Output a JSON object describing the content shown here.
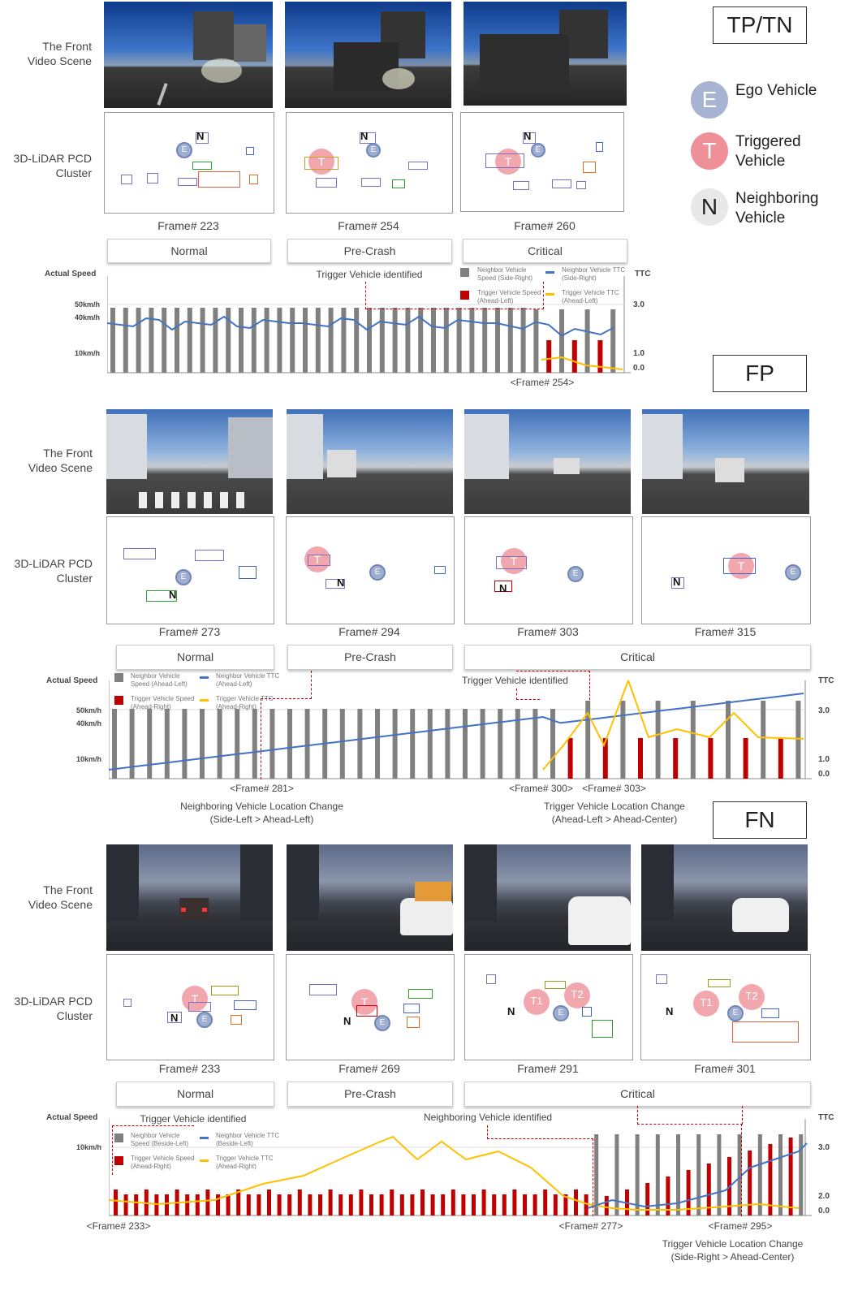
{
  "row_labels": {
    "video": "The Front Video Scene",
    "lidar": "3D-LiDAR PCD Cluster"
  },
  "legend": {
    "ego": {
      "letter": "E",
      "label": "Ego Vehicle"
    },
    "triggered": {
      "letter": "T",
      "label": "Triggered Vehicle"
    },
    "neighboring": {
      "letter": "N",
      "label": "Neighboring Vehicle"
    }
  },
  "colors": {
    "neighbor_speed": "#808080",
    "trigger_speed": "#c00000",
    "neighbor_ttc": "#4472c4",
    "trigger_ttc": "#ffc000",
    "ego_circle": "#9eaed0",
    "trigger_circle": "#eb7882"
  },
  "sections": [
    {
      "tag": "TP/TN",
      "frames": [
        "Frame# 223",
        "Frame# 254",
        "Frame# 260"
      ],
      "phases": [
        "Normal",
        "Pre-Crash",
        "Critical"
      ],
      "chart": {
        "speed_label": "Actual Speed",
        "ttc_label": "TTC",
        "y_ticks": [
          "50km/h",
          "40km/h",
          "10km/h"
        ],
        "ttc_ticks": [
          "3.0",
          "1.0",
          "0.0"
        ],
        "legend": [
          "Neighbor Vehicle Speed (Side-Right)",
          "Neighbor Vehicle TTC (Side-Right)",
          "Trigger Vehicle Speed (Ahead-Left)",
          "Trigger Vehicle TTC (Ahead-Left)"
        ],
        "annotations": [
          "Trigger Vehicle identified"
        ],
        "frame_marks": [
          "<Frame# 254>"
        ],
        "notes": []
      }
    },
    {
      "tag": "FP",
      "frames": [
        "Frame# 273",
        "Frame# 294",
        "Frame# 303",
        "Frame# 315"
      ],
      "phases": [
        "Normal",
        "Pre-Crash",
        "Critical"
      ],
      "chart": {
        "speed_label": "Actual Speed",
        "ttc_label": "TTC",
        "y_ticks": [
          "50km/h",
          "40km/h",
          "10km/h"
        ],
        "ttc_ticks": [
          "3.0",
          "1.0",
          "0.0"
        ],
        "legend": [
          "Neighbor Vehicle Speed (Ahead-Left)",
          "Neighbor Vehicle TTC (Ahead-Left)",
          "Trigger Vehicle Speed (Ahead-Right)",
          "Trigger Vehicle TTC (Ahead-Right)"
        ],
        "annotations": [
          "Trigger Vehicle identified"
        ],
        "frame_marks": [
          "<Frame# 281>",
          "<Frame# 300>",
          "<Frame# 303>"
        ],
        "notes": [
          "Neighboring Vehicle Location Change",
          "(Side-Left > Ahead-Left)",
          "Trigger Vehicle Location Change",
          "(Ahead-Left > Ahead-Center)"
        ]
      }
    },
    {
      "tag": "FN",
      "frames": [
        "Frame# 233",
        "Frame# 269",
        "Frame# 291",
        "Frame# 301"
      ],
      "phases": [
        "Normal",
        "Pre-Crash",
        "Critical"
      ],
      "chart": {
        "speed_label": "Actual Speed",
        "ttc_label": "TTC",
        "y_ticks": [
          "10km/h"
        ],
        "ttc_ticks": [
          "3.0",
          "2.0",
          "0.0"
        ],
        "legend": [
          "Neighbor Vehicle Speed (Beside-Left)",
          "Neighbor Vehicle TTC (Beside-Left)",
          "Trigger Vehicle Speed (Ahead-Right)",
          "Trigger Vehicle TTC (Ahead-Right)"
        ],
        "annotations": [
          "Trigger Vehicle identified",
          "Neighboring Vehicle identified"
        ],
        "frame_marks": [
          "<Frame# 233>",
          "<Frame# 277>",
          "<Frame# 295>"
        ],
        "notes": [
          "Trigger Vehicle Location Change",
          "(Side-Right > Ahead-Center)"
        ]
      }
    }
  ],
  "pcd_labels": {
    "E": "E",
    "T": "T",
    "N": "N",
    "T1": "T1",
    "T2": "T2"
  }
}
